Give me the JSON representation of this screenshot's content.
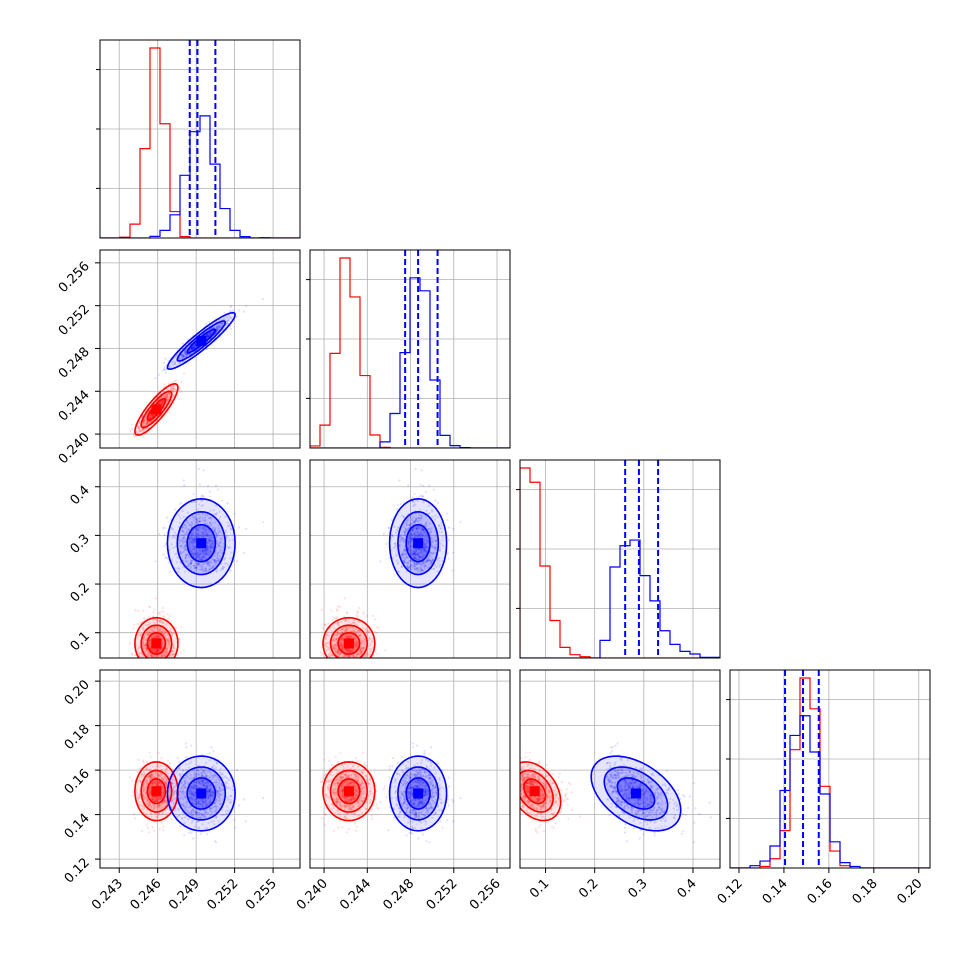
{
  "colors": {
    "series_a": "#ff0000",
    "series_b": "#0000ff",
    "grid": "#b0b0b0",
    "frame": "#000000"
  },
  "chart_data": {
    "type": "corner",
    "grid": true,
    "parameters": [
      {
        "range": [
          0.2415,
          0.2571
        ],
        "ticks": [
          0.243,
          0.246,
          0.249,
          0.252,
          0.255
        ],
        "tick_labels": [
          "0.243",
          "0.246",
          "0.249",
          "0.252",
          "0.255"
        ]
      },
      {
        "range": [
          0.2387,
          0.2572
        ],
        "ticks": [
          0.24,
          0.244,
          0.248,
          0.252,
          0.256
        ],
        "tick_labels": [
          "0.240",
          "0.244",
          "0.248",
          "0.252",
          "0.256"
        ]
      },
      {
        "range": [
          0.048,
          0.455
        ],
        "ticks": [
          0.1,
          0.2,
          0.3,
          0.4
        ],
        "tick_labels": [
          "0.1",
          "0.2",
          "0.3",
          "0.4"
        ]
      },
      {
        "range": [
          0.116,
          0.205
        ],
        "ticks": [
          0.12,
          0.14,
          0.16,
          0.18,
          0.2
        ],
        "tick_labels": [
          "0.12",
          "0.14",
          "0.16",
          "0.18",
          "0.20"
        ]
      }
    ],
    "series": [
      {
        "color": "#ff0000",
        "means": [
          0.2459,
          0.2423,
          0.078,
          0.1505
        ],
        "sds": [
          0.0007,
          0.001,
          0.022,
          0.0055
        ],
        "corr": [
          [
            0,
            1,
            0.85
          ],
          [
            2,
            3,
            -0.35
          ]
        ]
      },
      {
        "color": "#0000ff",
        "means": [
          0.2494,
          0.2487,
          0.284,
          0.1495
        ],
        "sds": [
          0.0011,
          0.0011,
          0.038,
          0.007
        ],
        "corr": [
          [
            0,
            1,
            0.93
          ],
          [
            2,
            3,
            -0.45
          ]
        ]
      }
    ],
    "quantile_lines": [
      [
        0.2485,
        0.2491,
        0.2505
      ],
      [
        0.2475,
        0.2487,
        0.2505
      ],
      [
        0.262,
        0.29,
        0.329
      ],
      [
        0.1405,
        0.1485,
        0.1555
      ]
    ],
    "quantile_color": "#0000ff"
  }
}
